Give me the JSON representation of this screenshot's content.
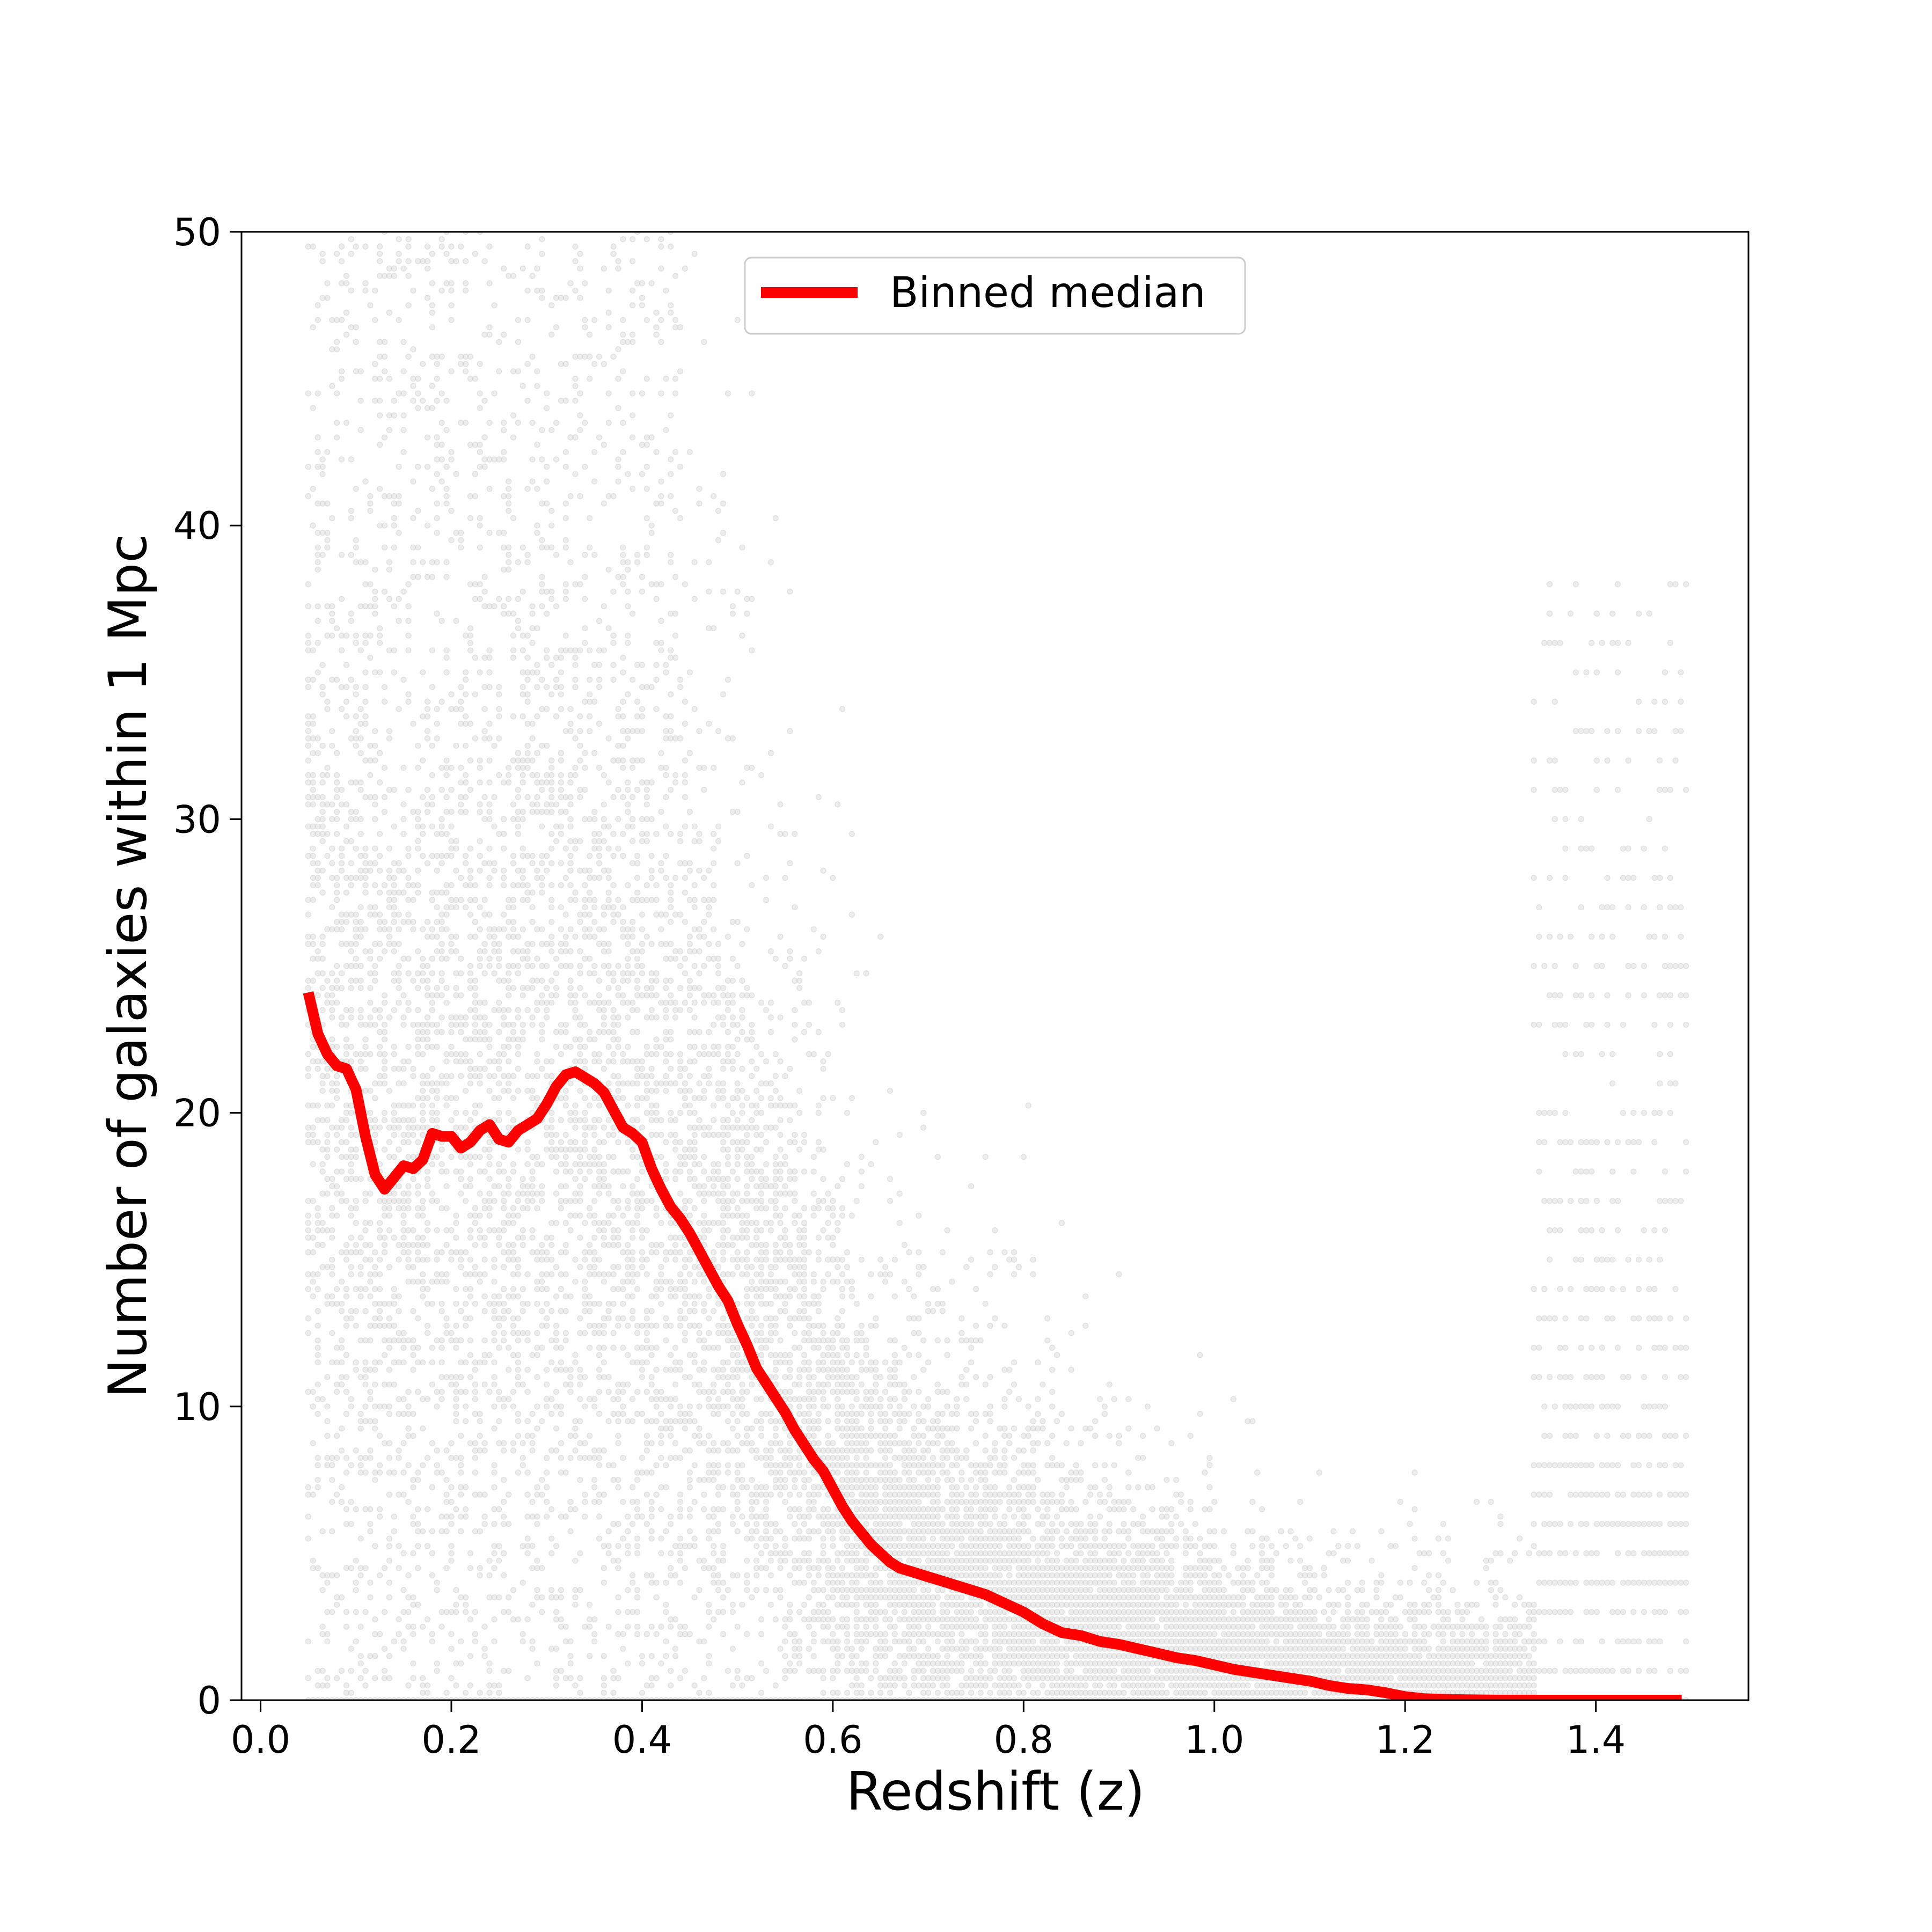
{
  "chart_data": {
    "type": "scatter",
    "title": "",
    "xlabel": "Redshift (z)",
    "ylabel": "Number of galaxies within 1 Mpc",
    "xlim": [
      -0.02,
      1.56
    ],
    "ylim": [
      0,
      50
    ],
    "xticks": [
      0.0,
      0.2,
      0.4,
      0.6,
      0.8,
      1.0,
      1.2,
      1.4
    ],
    "xtick_labels": [
      "0.0",
      "0.2",
      "0.4",
      "0.6",
      "0.8",
      "1.0",
      "1.2",
      "1.4"
    ],
    "yticks": [
      0,
      10,
      20,
      30,
      40,
      50
    ],
    "ytick_labels": [
      "0",
      "10",
      "20",
      "30",
      "40",
      "50"
    ],
    "grid": false,
    "legend": {
      "position": "top-center",
      "entries": [
        "Binned median"
      ]
    },
    "colors": {
      "scatter": "#000000",
      "median": "#ff0000"
    },
    "series": [
      {
        "name": "Binned median",
        "type": "line",
        "x": [
          0.05,
          0.06,
          0.07,
          0.08,
          0.09,
          0.1,
          0.11,
          0.12,
          0.13,
          0.14,
          0.15,
          0.16,
          0.17,
          0.18,
          0.19,
          0.2,
          0.21,
          0.22,
          0.23,
          0.24,
          0.25,
          0.26,
          0.27,
          0.28,
          0.29,
          0.3,
          0.31,
          0.32,
          0.33,
          0.34,
          0.35,
          0.36,
          0.37,
          0.38,
          0.39,
          0.4,
          0.41,
          0.42,
          0.43,
          0.44,
          0.45,
          0.46,
          0.47,
          0.48,
          0.49,
          0.5,
          0.51,
          0.52,
          0.53,
          0.54,
          0.55,
          0.56,
          0.57,
          0.58,
          0.59,
          0.6,
          0.61,
          0.62,
          0.63,
          0.64,
          0.65,
          0.66,
          0.67,
          0.68,
          0.69,
          0.7,
          0.72,
          0.74,
          0.76,
          0.78,
          0.8,
          0.82,
          0.84,
          0.86,
          0.88,
          0.9,
          0.92,
          0.94,
          0.96,
          0.98,
          1.0,
          1.02,
          1.04,
          1.06,
          1.08,
          1.1,
          1.12,
          1.14,
          1.16,
          1.18,
          1.2,
          1.22,
          1.25,
          1.3,
          1.35,
          1.4,
          1.45,
          1.49
        ],
        "y": [
          24.1,
          22.7,
          22.0,
          21.6,
          21.5,
          20.8,
          19.2,
          17.9,
          17.4,
          17.8,
          18.2,
          18.1,
          18.4,
          19.3,
          19.2,
          19.2,
          18.8,
          19.0,
          19.4,
          19.6,
          19.1,
          19.0,
          19.4,
          19.6,
          19.8,
          20.3,
          20.9,
          21.3,
          21.4,
          21.2,
          21.0,
          20.7,
          20.1,
          19.5,
          19.3,
          19.0,
          18.1,
          17.4,
          16.8,
          16.4,
          15.9,
          15.3,
          14.7,
          14.1,
          13.6,
          12.8,
          12.1,
          11.3,
          10.8,
          10.3,
          9.8,
          9.2,
          8.7,
          8.2,
          7.8,
          7.2,
          6.6,
          6.1,
          5.7,
          5.3,
          5.0,
          4.7,
          4.5,
          4.4,
          4.3,
          4.2,
          4.0,
          3.8,
          3.6,
          3.3,
          3.0,
          2.6,
          2.3,
          2.2,
          2.0,
          1.9,
          1.75,
          1.6,
          1.45,
          1.35,
          1.2,
          1.05,
          0.95,
          0.85,
          0.75,
          0.65,
          0.5,
          0.4,
          0.35,
          0.25,
          0.12,
          0.05,
          0.02,
          0.0,
          0.0,
          0.0,
          0.0,
          0.0
        ]
      },
      {
        "name": "",
        "type": "scatter",
        "description_values": "dense scatter of individual galaxies, z in 0.05–1.49, counts 0–50; band peaks ~15–25 at z<0.45, declines to ~0–5 near z~1.2, rises again (discrete integer rows up to ~48) at z 1.33–1.49"
      }
    ]
  }
}
